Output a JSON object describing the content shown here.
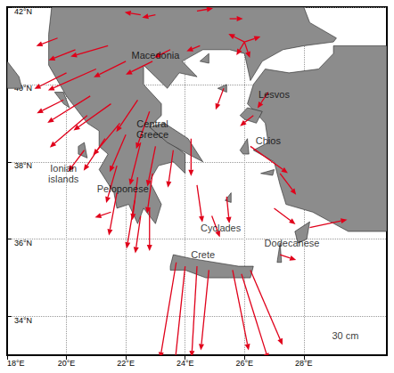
{
  "chart_data": {
    "type": "vector_map",
    "xlim": [
      18,
      30.8
    ],
    "ylim": [
      33,
      42
    ],
    "xticks": [
      {
        "value": 18,
        "label": "18°E"
      },
      {
        "value": 20,
        "label": "20°E"
      },
      {
        "value": 22,
        "label": "22°E"
      },
      {
        "value": 24,
        "label": "24°E"
      },
      {
        "value": 26,
        "label": "26°E"
      },
      {
        "value": 28,
        "label": "28°E"
      }
    ],
    "yticks": [
      {
        "value": 34,
        "label": "34°N"
      },
      {
        "value": 36,
        "label": "36°N"
      },
      {
        "value": 38,
        "label": "38°N"
      },
      {
        "value": 40,
        "label": "40°N"
      },
      {
        "value": 42,
        "label": "42°N"
      }
    ],
    "grid": true,
    "color": "#e0001a",
    "annotations": [
      {
        "text": "Macedonia",
        "lon": 23.0,
        "lat": 40.75
      },
      {
        "text": "Lesvos",
        "lon": 27.0,
        "lat": 39.75
      },
      {
        "text": "Chios",
        "lon": 26.8,
        "lat": 38.55
      },
      {
        "text": "Central\nGreece",
        "lon": 22.9,
        "lat": 38.85
      },
      {
        "text": "Ionian\nislands",
        "lon": 19.9,
        "lat": 37.7
      },
      {
        "text": "Peloponese",
        "lon": 21.9,
        "lat": 37.3
      },
      {
        "text": "Cyclades",
        "lon": 25.2,
        "lat": 36.3
      },
      {
        "text": "Dodecanese",
        "lon": 27.6,
        "lat": 35.9
      },
      {
        "text": "Crete",
        "lon": 24.6,
        "lat": 35.6
      },
      {
        "text": "30 cm",
        "lon": 29.4,
        "lat": 33.5
      }
    ],
    "vectors": [
      {
        "lon": 22.5,
        "lat": 41.8,
        "east": -6,
        "north": 1
      },
      {
        "lon": 23.0,
        "lat": 41.8,
        "east": -5,
        "north": -1
      },
      {
        "lon": 24.4,
        "lat": 41.9,
        "east": 6,
        "north": 1
      },
      {
        "lon": 25.5,
        "lat": 41.7,
        "east": 5,
        "north": 0
      },
      {
        "lon": 26.0,
        "lat": 41.1,
        "east": -6,
        "north": 3
      },
      {
        "lon": 26.0,
        "lat": 41.1,
        "east": 6,
        "north": 2
      },
      {
        "lon": 26.0,
        "lat": 41.1,
        "east": 2,
        "north": -6
      },
      {
        "lon": 26.0,
        "lat": 41.1,
        "east": -3,
        "north": -5
      },
      {
        "lon": 21.4,
        "lat": 41.0,
        "east": -14,
        "north": -4
      },
      {
        "lon": 22.0,
        "lat": 40.6,
        "east": -12,
        "north": -6
      },
      {
        "lon": 22.9,
        "lat": 40.6,
        "east": -10,
        "north": -5
      },
      {
        "lon": 23.5,
        "lat": 40.9,
        "east": -6,
        "north": -3
      },
      {
        "lon": 24.5,
        "lat": 41.0,
        "east": -5,
        "north": -2
      },
      {
        "lon": 21.0,
        "lat": 40.4,
        "east": -18,
        "north": -8
      },
      {
        "lon": 20.3,
        "lat": 40.9,
        "east": -10,
        "north": -4
      },
      {
        "lon": 19.7,
        "lat": 41.2,
        "east": -8,
        "north": -3
      },
      {
        "lon": 20.0,
        "lat": 40.3,
        "east": -12,
        "north": -6
      },
      {
        "lon": 20.8,
        "lat": 39.7,
        "east": -16,
        "north": -10
      },
      {
        "lon": 21.5,
        "lat": 39.5,
        "east": -14,
        "north": -10
      },
      {
        "lon": 20.7,
        "lat": 39.2,
        "east": -14,
        "north": -12
      },
      {
        "lon": 22.4,
        "lat": 39.6,
        "east": -8,
        "north": -12
      },
      {
        "lon": 21.8,
        "lat": 39.0,
        "east": -10,
        "north": -12
      },
      {
        "lon": 22.8,
        "lat": 39.3,
        "east": -5,
        "north": -14
      },
      {
        "lon": 22.0,
        "lat": 38.7,
        "east": -6,
        "north": -14
      },
      {
        "lon": 22.5,
        "lat": 38.5,
        "east": -4,
        "north": -16
      },
      {
        "lon": 23.0,
        "lat": 38.4,
        "east": -3,
        "north": -15
      },
      {
        "lon": 23.6,
        "lat": 38.3,
        "east": -2,
        "north": -14
      },
      {
        "lon": 21.3,
        "lat": 38.6,
        "east": -8,
        "north": -12
      },
      {
        "lon": 24.2,
        "lat": 38.6,
        "east": 0,
        "north": -14
      },
      {
        "lon": 20.6,
        "lat": 38.3,
        "east": -6,
        "north": -8
      },
      {
        "lon": 19.9,
        "lat": 39.6,
        "east": -10,
        "north": -5
      },
      {
        "lon": 21.7,
        "lat": 37.9,
        "east": -4,
        "north": -14
      },
      {
        "lon": 22.4,
        "lat": 37.6,
        "east": -2,
        "north": -16
      },
      {
        "lon": 22.9,
        "lat": 37.7,
        "east": -2,
        "north": -15
      },
      {
        "lon": 21.7,
        "lat": 37.2,
        "east": -3,
        "north": -16
      },
      {
        "lon": 22.3,
        "lat": 37.0,
        "east": -3,
        "north": -18
      },
      {
        "lon": 22.8,
        "lat": 36.8,
        "east": 0,
        "north": -16
      },
      {
        "lon": 22.5,
        "lat": 36.6,
        "east": -2,
        "north": -14
      },
      {
        "lon": 21.5,
        "lat": 36.7,
        "east": -6,
        "north": -2
      },
      {
        "lon": 24.4,
        "lat": 37.4,
        "east": 2,
        "north": -14
      },
      {
        "lon": 25.4,
        "lat": 37.1,
        "east": 1,
        "north": -10
      },
      {
        "lon": 24.9,
        "lat": 36.6,
        "east": 3,
        "north": -8
      },
      {
        "lon": 25.3,
        "lat": 39.9,
        "east": -3,
        "north": -8
      },
      {
        "lon": 26.3,
        "lat": 39.2,
        "east": -5,
        "north": -4
      },
      {
        "lon": 26.8,
        "lat": 39.8,
        "east": -4,
        "north": -6
      },
      {
        "lon": 26.2,
        "lat": 38.4,
        "east": 14,
        "north": -10
      },
      {
        "lon": 27.2,
        "lat": 37.7,
        "east": 6,
        "north": -8
      },
      {
        "lon": 27.0,
        "lat": 36.8,
        "east": 8,
        "north": -6
      },
      {
        "lon": 28.2,
        "lat": 36.3,
        "east": 14,
        "north": 3
      },
      {
        "lon": 27.2,
        "lat": 35.6,
        "east": 6,
        "north": -2
      },
      {
        "lon": 23.7,
        "lat": 35.4,
        "east": -6,
        "north": -36
      },
      {
        "lon": 24.0,
        "lat": 35.3,
        "east": -4,
        "north": -38
      },
      {
        "lon": 24.4,
        "lat": 35.3,
        "east": -2,
        "north": -34
      },
      {
        "lon": 24.8,
        "lat": 35.2,
        "east": -3,
        "north": -30
      },
      {
        "lon": 25.6,
        "lat": 35.2,
        "east": 6,
        "north": -30
      },
      {
        "lon": 25.9,
        "lat": 35.1,
        "east": 10,
        "north": -32
      },
      {
        "lon": 26.2,
        "lat": 35.2,
        "east": 12,
        "north": -28
      }
    ]
  }
}
